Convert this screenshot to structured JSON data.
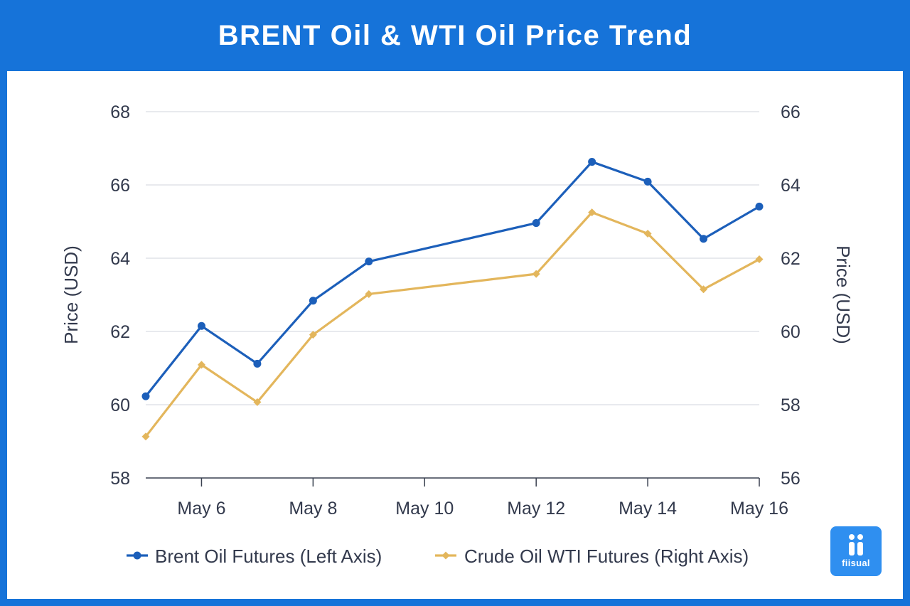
{
  "title": "BRENT Oil & WTI Oil Price Trend",
  "logo": {
    "text": "fiisual"
  },
  "chart_data": {
    "type": "line",
    "x": [
      "2025-05-05",
      "2025-05-06",
      "2025-05-07",
      "2025-05-08",
      "2025-05-09",
      "2025-05-12",
      "2025-05-13",
      "2025-05-14",
      "2025-05-15",
      "2025-05-16"
    ],
    "x_ticks": [
      "May 6",
      "May 8",
      "May 10",
      "May 12",
      "May 14",
      "May 16"
    ],
    "x_tick_dates": [
      "2025-05-06",
      "2025-05-08",
      "2025-05-10",
      "2025-05-12",
      "2025-05-14",
      "2025-05-16"
    ],
    "xlim": [
      "2025-05-05",
      "2025-05-16"
    ],
    "y_left": {
      "label": "Price (USD)",
      "ylim": [
        58,
        68
      ],
      "ticks": [
        58,
        60,
        62,
        64,
        66,
        68
      ]
    },
    "y_right": {
      "label": "Price (USD)",
      "ylim": [
        56,
        66
      ],
      "ticks": [
        56,
        58,
        60,
        62,
        64,
        66
      ]
    },
    "grid": true,
    "legend_position": "bottom-center",
    "series": [
      {
        "name": "Brent Oil Futures (Left Axis)",
        "axis": "left",
        "color": "#1c5fba",
        "marker": "circle",
        "values": [
          60.23,
          62.15,
          61.12,
          62.84,
          63.91,
          64.96,
          66.63,
          66.09,
          64.53,
          65.41
        ]
      },
      {
        "name": "Crude Oil WTI Futures (Right Axis)",
        "axis": "right",
        "color": "#e3b65c",
        "marker": "diamond",
        "values": [
          57.13,
          59.09,
          58.07,
          59.91,
          61.02,
          61.57,
          63.25,
          62.67,
          61.15,
          61.97
        ]
      }
    ]
  }
}
